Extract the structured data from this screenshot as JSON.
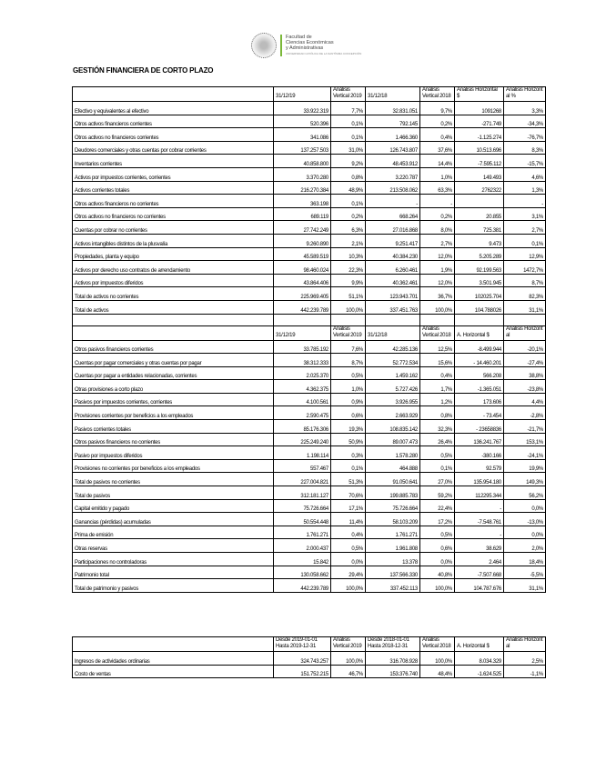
{
  "logo": {
    "line1": "Facultad de",
    "line2": "Ciencias Económicas",
    "line3": "y Administrativas",
    "sub": "UNIVERSIDAD CATÓLICA DE LA SANTÍSIMA CONCEPCIÓN"
  },
  "title": "GESTIÓN FINANCIERA DE CORTO PLAZO",
  "table1": {
    "header": [
      "",
      "31/12/19",
      "Análisis Vertical 2019",
      "31/12/18",
      "Análisis Vertical 2018",
      "Análisis Horizontal $",
      "Análisis Horizont al %"
    ],
    "rows": [
      [
        "Efectivo y equivalentes al efectivo",
        "33.922.319",
        "7,7%",
        "32.831.051",
        "9,7%",
        "1091268",
        "3,3%"
      ],
      [
        "Otros activos financieros corrientes",
        "520.396",
        "0,1%",
        "792.145",
        "0,2%",
        "-271.749",
        "-34,3%"
      ],
      [
        "Otros activos no financieros corrientes",
        "341.086",
        "0,1%",
        "1.466.360",
        "0,4%",
        "-1.125.274",
        "-76,7%"
      ],
      [
        "Deudores comerciales y otras cuentas por cobrar corrientes",
        "137.257.503",
        "31,0%",
        "126.743.807",
        "37,6%",
        "10.513.696",
        "8,3%"
      ],
      [
        "Inventarios corrientes",
        "40.858.800",
        "9,2%",
        "48.453.912",
        "14,4%",
        "-7.595.112",
        "-15,7%"
      ],
      [
        "Activos por impuestos corrientes, corrientes",
        "3.370.280",
        "0,8%",
        "3.220.787",
        "1,0%",
        "149.493",
        "4,6%"
      ],
      [
        "Activos corrientes totales",
        "216.270.384",
        "48,9%",
        "213.508.062",
        "63,3%",
        "2762322",
        "1,3%"
      ],
      [
        "Otros activos financieros no corrientes",
        "363.198",
        "0,1%",
        "-",
        "-",
        "",
        "-"
      ],
      [
        "Otros activos no financieros no corrientes",
        "689.119",
        "0,2%",
        "668.264",
        "0,2%",
        "20.855",
        "3,1%"
      ],
      [
        "Cuentas por cobrar no corrientes",
        "27.742.249",
        "6,3%",
        "27.016.868",
        "8,0%",
        "725.381",
        "2,7%"
      ],
      [
        "Activos intangibles distintos de la plusvalía",
        "9.260.890",
        "2,1%",
        "9.251.417",
        "2,7%",
        "9.473",
        "0,1%"
      ],
      [
        "Propiedades, planta y equipo",
        "45.589.519",
        "10,3%",
        "40.384.230",
        "12,0%",
        "5.205.289",
        "12,9%"
      ],
      [
        "Activos por derecho uso contratos de arrendamiento",
        "98.460.024",
        "22,3%",
        "6.260.461",
        "1,9%",
        "92.199.563",
        "1472,7%"
      ],
      [
        "Activos por impuestos diferidos",
        "43.864.406",
        "9,9%",
        "40.362.461",
        "12,0%",
        "3.501.945",
        "8,7%"
      ],
      [
        "Total de activos no corrientes",
        "225.969.405",
        "51,1%",
        "123.943.701",
        "36,7%",
        "102025.704",
        "82,3%"
      ],
      [
        "Total de activos",
        "442.239.789",
        "100,0%",
        "337.451.763",
        "100,0%",
        "104.788026",
        "31,1%"
      ]
    ],
    "header2": [
      "",
      "31/12/19",
      "Análisis Vertical 2019",
      "31/12/18",
      "Análisis Vertical 2018",
      "A. Horizontal $",
      "Análisis Horizont al"
    ],
    "rows2": [
      [
        "Otros pasivos financieros corrientes",
        "33.785.192",
        "7,6%",
        "42.285.136",
        "12,5%",
        "-8.499.944",
        "-20,1%"
      ],
      [
        "Cuentas por pagar comerciales y otras cuentas por pagar",
        "38.312.333",
        "8,7%",
        "52.772.534",
        "15,6%",
        "- 14.460.201",
        "-27,4%"
      ],
      [
        "Cuentas por pagar a entidades relacionadas, corrientes",
        "2.025.370",
        "0,5%",
        "1.459.162",
        "0,4%",
        "566.208",
        "38,8%"
      ],
      [
        "Otras provisiones a corto plazo",
        "4.362.375",
        "1,0%",
        "5.727.426",
        "1,7%",
        "-1.365.051",
        "-23,8%"
      ],
      [
        "Pasivos por impuestos corrientes, corrientes",
        "4.100.561",
        "0,9%",
        "3.926.955",
        "1,2%",
        "173.606",
        "4,4%"
      ],
      [
        "Provisiones corrientes por beneficios a los empleados",
        "2.590.475",
        "0,6%",
        "2.663.929",
        "0,8%",
        "- 73.454",
        "-2,8%"
      ],
      [
        "Pasivos corrientes totales",
        "85.176.306",
        "19,3%",
        "108.835.142",
        "32,3%",
        "- 23658836",
        "-21,7%"
      ],
      [
        "Otros pasivos financieros no corrientes",
        "225.249.240",
        "50,9%",
        "89.007.473",
        "26,4%",
        "136.241.767",
        "153,1%"
      ],
      [
        "Pasivo por impuestos diferidos",
        "1.198.114",
        "0,3%",
        "1.578.280",
        "0,5%",
        "-380.166",
        "-24,1%"
      ],
      [
        "Provisiones no corrientes por beneficios a los empleados",
        "557.467",
        "0,1%",
        "464.888",
        "0,1%",
        "92.579",
        "19,9%"
      ],
      [
        "Total de pasivos no corrientes",
        "227.004.821",
        "51,3%",
        "91.050.641",
        "27,0%",
        "135.954.180",
        "149,3%"
      ],
      [
        "Total de pasivos",
        "312.181.127",
        "70,6%",
        "199.885.783",
        "59,2%",
        "112295.344",
        "56,2%"
      ],
      [
        "Capital emitido y pagado",
        "75.726.664",
        "17,1%",
        "75.726.664",
        "22,4%",
        "-",
        "0,0%"
      ],
      [
        "Ganancias (pérdidas) acumuladas",
        "50.554.448",
        "11,4%",
        "58.103.209",
        "17,2%",
        "-7.548.761",
        "-13,0%"
      ],
      [
        "Prima de emisión",
        "1.761.271",
        "0,4%",
        "1.761.271",
        "0,5%",
        "-",
        "0,0%"
      ],
      [
        "Otras reservas",
        "2.000.437",
        "0,5%",
        "1.961.808",
        "0,6%",
        "38.629",
        "2,0%"
      ],
      [
        "Participaciones no controladoras",
        "15.842",
        "0,0%",
        "13.378",
        "0,0%",
        "2.464",
        "18,4%"
      ],
      [
        "Patrimonio total",
        "130.058.662",
        "29,4%",
        "137.566.330",
        "40,8%",
        "-7.507.668",
        "-5,5%"
      ],
      [
        "Total de patrimonio y pasivos",
        "442.239.789",
        "100,0%",
        "337.452.113",
        "100,0%",
        "104.787.676",
        "31,1%"
      ]
    ]
  },
  "table3": {
    "header": [
      "",
      "Desde 2019-01-01 Hasta 2019-12-31",
      "Análisis Vertical 2019",
      "Desde 2018-01-01 Hasta 2018-12-31",
      "Análisis Vertical 2018",
      "A. Horizontal $",
      "Análisis Horizont al"
    ],
    "rows": [
      [
        "Ingresos de actividades ordinarias",
        "324.743.257",
        "100,0%",
        "316.708.928",
        "100,0%",
        "8.034.329",
        "2,5%"
      ],
      [
        "Costo de ventas",
        "151.752.215",
        "46,7%",
        "153.376.740",
        "48,4%",
        "-1.624.525",
        "-1,1%"
      ]
    ]
  }
}
